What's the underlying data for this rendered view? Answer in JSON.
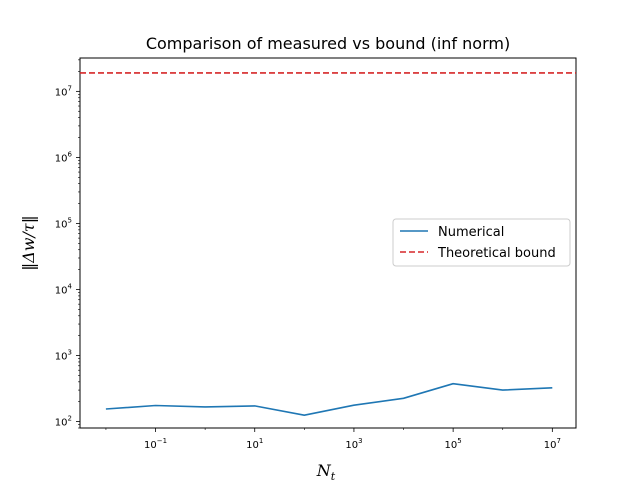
{
  "chart_data": {
    "type": "line",
    "title": "Comparison of measured vs bound (inf norm)",
    "xlabel": "N_t",
    "ylabel": "‖Δw/τ‖",
    "xscale": "log",
    "yscale": "log",
    "xlim": [
      0.003,
      30000000
    ],
    "ylim": [
      80,
      32000000
    ],
    "x_ticks": [
      {
        "value": 0.1,
        "base": "10",
        "exp": "−1"
      },
      {
        "value": 10,
        "base": "10",
        "exp": "1"
      },
      {
        "value": 1000,
        "base": "10",
        "exp": "3"
      },
      {
        "value": 100000,
        "base": "10",
        "exp": "5"
      },
      {
        "value": 10000000,
        "base": "10",
        "exp": "7"
      }
    ],
    "y_ticks": [
      {
        "value": 100,
        "base": "10",
        "exp": "2"
      },
      {
        "value": 1000,
        "base": "10",
        "exp": "3"
      },
      {
        "value": 10000,
        "base": "10",
        "exp": "4"
      },
      {
        "value": 100000,
        "base": "10",
        "exp": "5"
      },
      {
        "value": 1000000,
        "base": "10",
        "exp": "6"
      },
      {
        "value": 10000000,
        "base": "10",
        "exp": "7"
      }
    ],
    "series": [
      {
        "name": "Numerical",
        "style": "solid",
        "color": "#1f77b4",
        "x": [
          0.01,
          0.1,
          1,
          10,
          100,
          1000,
          10000,
          100000,
          1000000,
          10000000
        ],
        "y": [
          155,
          175,
          167,
          173,
          125,
          177,
          225,
          375,
          300,
          325
        ]
      },
      {
        "name": "Theoretical bound",
        "style": "dashed",
        "color": "#d62728",
        "y_constant": 19000000
      }
    ],
    "legend": {
      "placement": "center-right"
    },
    "grid": false
  }
}
